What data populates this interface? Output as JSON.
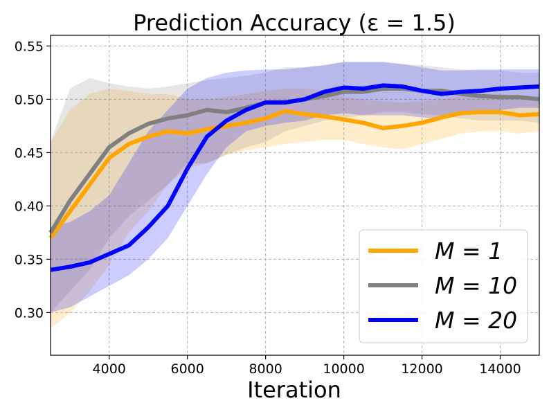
{
  "chart_data": {
    "type": "line",
    "title": "Prediction Accuracy (ε = 1.5)",
    "xlabel": "Iteration",
    "ylabel": "",
    "xlim": [
      2500,
      15000
    ],
    "ylim": [
      0.26,
      0.56
    ],
    "xticks": [
      4000,
      6000,
      8000,
      10000,
      12000,
      14000
    ],
    "xtick_labels": [
      "4000",
      "6000",
      "8000",
      "10000",
      "12000",
      "14000"
    ],
    "yticks": [
      0.3,
      0.35,
      0.4,
      0.45,
      0.5,
      0.55
    ],
    "ytick_labels": [
      "0.30",
      "0.35",
      "0.40",
      "0.45",
      "0.50",
      "0.55"
    ],
    "grid": true,
    "legend_position": "lower-right",
    "x": [
      2500,
      3000,
      3500,
      4000,
      4500,
      5000,
      5500,
      6000,
      6500,
      7000,
      7500,
      8000,
      8500,
      9000,
      9500,
      10000,
      10500,
      11000,
      11500,
      12000,
      12500,
      13000,
      13500,
      14000,
      14500,
      15000
    ],
    "series": [
      {
        "name": "M = 1",
        "color": "#ffa500",
        "values": [
          0.37,
          0.395,
          0.42,
          0.445,
          0.458,
          0.465,
          0.47,
          0.468,
          0.472,
          0.475,
          0.478,
          0.482,
          0.489,
          0.486,
          0.484,
          0.481,
          0.478,
          0.473,
          0.475,
          0.478,
          0.483,
          0.487,
          0.488,
          0.488,
          0.485,
          0.486
        ],
        "lower": [
          0.285,
          0.3,
          0.32,
          0.345,
          0.375,
          0.395,
          0.42,
          0.435,
          0.44,
          0.448,
          0.452,
          0.455,
          0.458,
          0.46,
          0.462,
          0.462,
          0.458,
          0.455,
          0.453,
          0.458,
          0.463,
          0.468,
          0.47,
          0.47,
          0.468,
          0.47
        ],
        "upper": [
          0.46,
          0.49,
          0.505,
          0.51,
          0.508,
          0.505,
          0.505,
          0.5,
          0.5,
          0.502,
          0.505,
          0.508,
          0.51,
          0.51,
          0.508,
          0.502,
          0.5,
          0.498,
          0.497,
          0.498,
          0.5,
          0.503,
          0.505,
          0.505,
          0.503,
          0.503
        ]
      },
      {
        "name": "M = 10",
        "color": "#808080",
        "values": [
          0.375,
          0.405,
          0.43,
          0.455,
          0.468,
          0.477,
          0.482,
          0.485,
          0.49,
          0.488,
          0.492,
          0.497,
          0.497,
          0.5,
          0.503,
          0.507,
          0.507,
          0.51,
          0.51,
          0.508,
          0.508,
          0.505,
          0.503,
          0.502,
          0.502,
          0.5
        ],
        "lower": [
          0.3,
          0.32,
          0.34,
          0.37,
          0.39,
          0.405,
          0.42,
          0.44,
          0.44,
          0.448,
          0.455,
          0.46,
          0.47,
          0.475,
          0.48,
          0.482,
          0.485,
          0.488,
          0.488,
          0.486,
          0.485,
          0.482,
          0.48,
          0.48,
          0.48,
          0.478
        ],
        "upper": [
          0.46,
          0.51,
          0.52,
          0.515,
          0.512,
          0.51,
          0.512,
          0.515,
          0.518,
          0.52,
          0.522,
          0.525,
          0.53,
          0.53,
          0.532,
          0.535,
          0.535,
          0.535,
          0.533,
          0.532,
          0.53,
          0.528,
          0.527,
          0.527,
          0.525,
          0.525
        ]
      },
      {
        "name": "M = 20",
        "color": "#0000ff",
        "values": [
          0.34,
          0.343,
          0.347,
          0.355,
          0.363,
          0.38,
          0.4,
          0.435,
          0.465,
          0.48,
          0.49,
          0.497,
          0.497,
          0.5,
          0.507,
          0.511,
          0.51,
          0.513,
          0.512,
          0.508,
          0.505,
          0.507,
          0.508,
          0.51,
          0.511,
          0.512
        ],
        "lower": [
          0.3,
          0.305,
          0.315,
          0.325,
          0.335,
          0.35,
          0.37,
          0.4,
          0.43,
          0.455,
          0.47,
          0.475,
          0.478,
          0.48,
          0.485,
          0.487,
          0.485,
          0.485,
          0.485,
          0.483,
          0.482,
          0.485,
          0.487,
          0.49,
          0.492,
          0.492
        ],
        "upper": [
          0.38,
          0.385,
          0.395,
          0.41,
          0.44,
          0.47,
          0.49,
          0.51,
          0.52,
          0.525,
          0.527,
          0.528,
          0.528,
          0.53,
          0.532,
          0.535,
          0.535,
          0.535,
          0.533,
          0.53,
          0.527,
          0.527,
          0.528,
          0.528,
          0.528,
          0.528
        ]
      }
    ]
  }
}
